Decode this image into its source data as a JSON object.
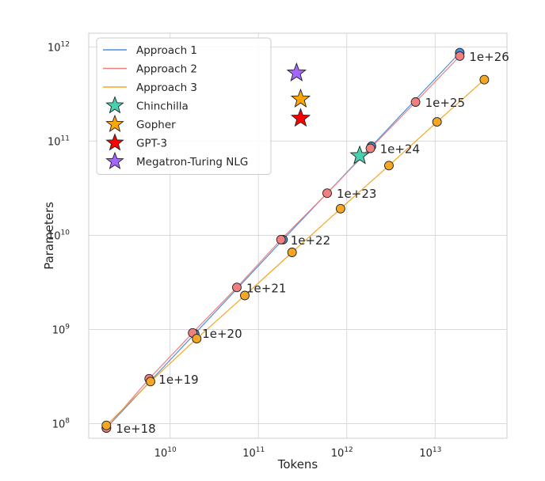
{
  "chart_data": {
    "type": "scatter",
    "title": "",
    "xlabel": "Tokens",
    "ylabel": "Parameters",
    "xscale": "log",
    "yscale": "log",
    "xlim": [
      1200000000.0,
      65000000000000.0
    ],
    "ylim": [
      70000000.0,
      1400000000000.0
    ],
    "grid": true,
    "legend_position": "top-left",
    "x_ticks": [
      {
        "base": "10",
        "exp": "10",
        "value": 10000000000.0
      },
      {
        "base": "10",
        "exp": "11",
        "value": 100000000000.0
      },
      {
        "base": "10",
        "exp": "12",
        "value": 1000000000000.0
      },
      {
        "base": "10",
        "exp": "13",
        "value": 10000000000000.0
      }
    ],
    "y_ticks": [
      {
        "base": "10",
        "exp": "8",
        "value": 100000000.0
      },
      {
        "base": "10",
        "exp": "9",
        "value": 1000000000.0
      },
      {
        "base": "10",
        "exp": "10",
        "value": 10000000000.0
      },
      {
        "base": "10",
        "exp": "11",
        "value": 100000000000.0
      },
      {
        "base": "10",
        "exp": "12",
        "value": 1000000000000.0
      }
    ],
    "series": [
      {
        "name": "Approach 1",
        "color": "#4a90d9",
        "x": [
          1900000000.0,
          19000000000.0,
          190000000000.0,
          1900000000000.0,
          19000000000000.0
        ],
        "y": [
          90000000.0,
          900000000.0,
          9000000000.0,
          88000000000.0,
          870000000000.0
        ]
      },
      {
        "name": "Approach 2",
        "color": "#f08080",
        "x": [
          1900000000.0,
          5800000000.0,
          18000000000.0,
          57000000000.0,
          180000000000.0,
          600000000000.0,
          1850000000000.0,
          6000000000000.0,
          19000000000000.0
        ],
        "y": [
          90000000.0,
          300000000.0,
          920000000.0,
          2800000000.0,
          9000000000.0,
          28000000000.0,
          84000000000.0,
          260000000000.0,
          800000000000.0
        ]
      },
      {
        "name": "Approach 3",
        "color": "#f5a623",
        "x": [
          1900000000.0,
          6000000000.0,
          20000000000.0,
          70000000000.0,
          240000000000.0,
          850000000000.0,
          3000000000000.0,
          10500000000000.0,
          36000000000000.0
        ],
        "y": [
          96000000.0,
          280000000.0,
          800000000.0,
          2300000000.0,
          6600000000.0,
          19200000000.0,
          55000000000.0,
          160000000000.0,
          450000000000.0
        ]
      }
    ],
    "markers": [
      {
        "name": "Chinchilla",
        "color": "#48d1b0",
        "x": 1400000000000.0,
        "y": 70000000000.0
      },
      {
        "name": "Gopher",
        "color": "#ffa500",
        "x": 300000000000.0,
        "y": 280000000000.0
      },
      {
        "name": "GPT-3",
        "color": "#ff0000",
        "x": 300000000000.0,
        "y": 175000000000.0
      },
      {
        "name": "Megatron-Turing NLG",
        "color": "#a566ff",
        "x": 270000000000.0,
        "y": 530000000000.0
      }
    ],
    "annotations": [
      {
        "text": "1e+18",
        "x": 1900000000.0,
        "y": 90000000.0
      },
      {
        "text": "1e+19",
        "x": 5800000000.0,
        "y": 300000000.0
      },
      {
        "text": "1e+20",
        "x": 18000000000.0,
        "y": 920000000.0
      },
      {
        "text": "1e+21",
        "x": 57000000000.0,
        "y": 2800000000.0
      },
      {
        "text": "1e+22",
        "x": 180000000000.0,
        "y": 9000000000.0
      },
      {
        "text": "1e+23",
        "x": 600000000000.0,
        "y": 28000000000.0
      },
      {
        "text": "1e+24",
        "x": 1850000000000.0,
        "y": 84000000000.0
      },
      {
        "text": "1e+25",
        "x": 6000000000000.0,
        "y": 260000000000.0
      },
      {
        "text": "1e+26",
        "x": 19000000000000.0,
        "y": 800000000000.0
      }
    ]
  }
}
